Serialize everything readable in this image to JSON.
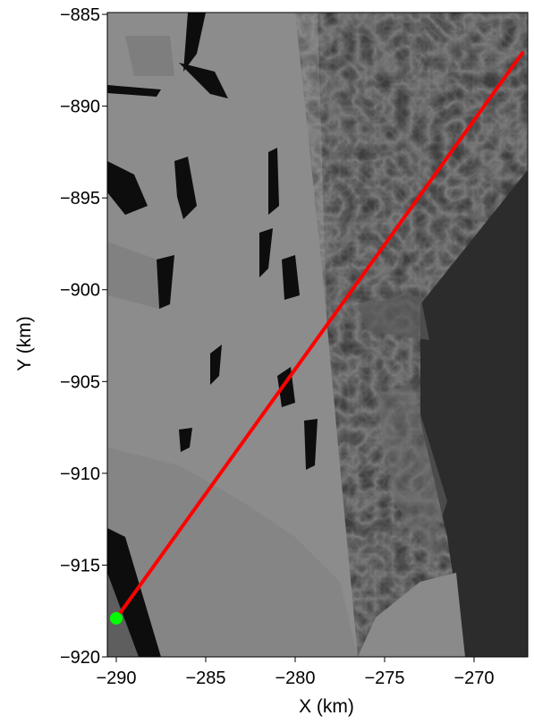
{
  "chart_data": {
    "type": "scatter",
    "xlabel": "X (km)",
    "ylabel": "Y (km)",
    "xlim": [
      -290.5,
      -267
    ],
    "ylim": [
      -920,
      -884.9
    ],
    "x_ticks": [
      -290,
      -285,
      -280,
      -275,
      -270
    ],
    "y_ticks": [
      -885,
      -890,
      -895,
      -900,
      -905,
      -910,
      -915,
      -920
    ],
    "x_tick_labels": [
      "−290",
      "−285",
      "−280",
      "−275",
      "−270"
    ],
    "y_tick_labels": [
      "−885",
      "−890",
      "−895",
      "−900",
      "−905",
      "−910",
      "−915",
      "−920"
    ],
    "series": [
      {
        "type": "line",
        "color": "#ff0000",
        "x": [
          -290,
          -267.3
        ],
        "y": [
          -917.9,
          -887.1
        ]
      },
      {
        "type": "point",
        "color": "#00ff00",
        "x": [
          -290
        ],
        "y": [
          -917.9
        ]
      }
    ],
    "background": "grayscale satellite sea-ice image"
  }
}
